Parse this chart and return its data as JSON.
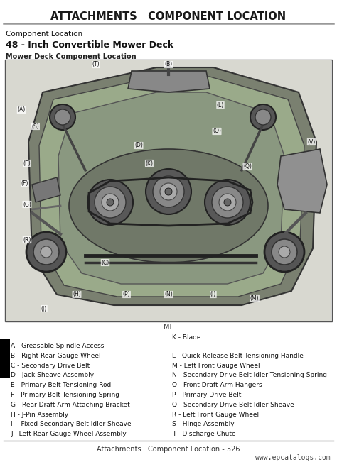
{
  "page_title": "ATTACHMENTS   COMPONENT LOCATION",
  "section_label": "Component Location",
  "subsection_title": "48 - Inch Convertible Mower Deck",
  "diagram_label": "Mower Deck Component Location",
  "diagram_sublabel": "MF",
  "footer_left": "Attachments   Component Location - 526",
  "footer_right": "www.epcatalogs.com",
  "bg_color": "#ffffff",
  "black_tab_color": "#000000",
  "separator_color": "#888888",
  "title_line_color": "#999999",
  "left_items": [
    "A - Greasable Spindle Access",
    "B - Right Rear Gauge Wheel",
    "C - Secondary Drive Belt",
    "D - Jack Sheave Assembly",
    "E - Primary Belt Tensioning Rod",
    "F - Primary Belt Tensioning Spring",
    "G - Rear Draft Arm Attaching Bracket",
    "H - J-Pin Assembly",
    "I  - Fixed Secondary Belt Idler Sheave",
    "J - Left Rear Gauge Wheel Assembly"
  ],
  "right_items": [
    "K - Blade",
    "L - Quick-Release Belt Tensioning Handle",
    "M - Left Front Gauge Wheel",
    "N - Secondary Drive Belt Idler Tensioning Spring",
    "O - Front Draft Arm Hangers",
    "P - Primary Drive Belt",
    "Q - Secondary Drive Belt Idler Sheave",
    "R - Left Front Gauge Wheel",
    "S - Hinge Assembly",
    "T - Discharge Chute"
  ],
  "diagram_border": "#555555",
  "diagram_fill": "#f0f0f0",
  "deck_color": "#b8b8b8",
  "deck_dark": "#888888",
  "deck_mid": "#a0a0a0"
}
